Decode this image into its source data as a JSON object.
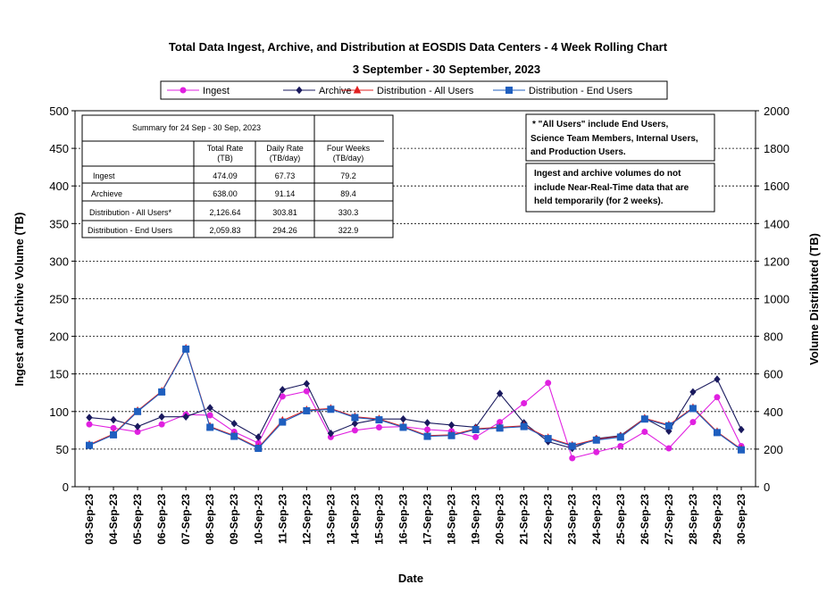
{
  "title": "Total Data Ingest, Archive, and  Distribution at EOSDIS Data Centers - 4 Week Rolling Chart",
  "subtitle": "3 September   - 30 September,  2023",
  "notes": [
    "* \"All Users\" include End Users,",
    "Science Team Members,  Internal Users,",
    "and Production Users.",
    "Ingest and archive volumes do not",
    "include Near-Real-Time data that are",
    "held temporarily (for 2 weeks)."
  ],
  "summary": {
    "caption": "Summary  for  24 Sep -  30 Sep, 2023",
    "headers": [
      [
        "Total Rate",
        "(TB)"
      ],
      [
        "Daily Rate",
        "(TB/day)"
      ],
      [
        "Four Weeks",
        "(TB/day)"
      ]
    ],
    "rows": [
      {
        "label": "Ingest",
        "total": "474.09",
        "daily": "67.73",
        "four": "79.2"
      },
      {
        "label": "Archieve",
        "total": "638.00",
        "daily": "91.14",
        "four": "89.4"
      },
      {
        "label": "Distribution - All Users*",
        "total": "2,126.64",
        "daily": "303.81",
        "four": "330.3"
      },
      {
        "label": "Distribution - End Users",
        "total": "2,059.83",
        "daily": "294.26",
        "four": "322.9"
      }
    ]
  },
  "colors": {
    "ingest": "#e020e0",
    "archive": "#1a1a5e",
    "dist_all": "#e02020",
    "dist_end": "#1f5fbf"
  },
  "chart_data": {
    "type": "line",
    "xlabel": "Date",
    "ylabel": "Ingest and Archive Volume (TB)",
    "y2label": "Volume Distributed (TB)",
    "ylim": [
      0,
      500
    ],
    "y2lim": [
      0,
      2000
    ],
    "yticks": [
      "0",
      "50",
      "100",
      "150",
      "200",
      "250",
      "300",
      "350",
      "400",
      "450",
      "500"
    ],
    "y2ticks": [
      "0",
      "200",
      "400",
      "600",
      "800",
      "1000",
      "1200",
      "1400",
      "1600",
      "1800",
      "2000"
    ],
    "grid": true,
    "legend_position": "top",
    "categories": [
      "03-Sep-23",
      "04-Sep-23",
      "05-Sep-23",
      "06-Sep-23",
      "07-Sep-23",
      "08-Sep-23",
      "09-Sep-23",
      "10-Sep-23",
      "11-Sep-23",
      "12-Sep-23",
      "13-Sep-23",
      "14-Sep-23",
      "15-Sep-23",
      "16-Sep-23",
      "17-Sep-23",
      "18-Sep-23",
      "19-Sep-23",
      "20-Sep-23",
      "21-Sep-23",
      "22-Sep-23",
      "23-Sep-23",
      "24-Sep-23",
      "25-Sep-23",
      "26-Sep-23",
      "27-Sep-23",
      "28-Sep-23",
      "29-Sep-23",
      "30-Sep-23"
    ],
    "series": [
      {
        "name": "Ingest",
        "axis": "left",
        "marker": "circle",
        "color": "#e020e0",
        "values": [
          83,
          78,
          73,
          83,
          96,
          95,
          73,
          58,
          120,
          127,
          66,
          75,
          79,
          80,
          76,
          74,
          66,
          86,
          111,
          138,
          38,
          46,
          54,
          73,
          51,
          86,
          119,
          54
        ]
      },
      {
        "name": "Archive",
        "axis": "left",
        "marker": "diamond",
        "color": "#1a1a5e",
        "values": [
          92,
          89,
          80,
          93,
          93,
          105,
          84,
          66,
          129,
          137,
          71,
          84,
          90,
          90,
          85,
          82,
          79,
          124,
          85,
          60,
          51,
          64,
          68,
          91,
          74,
          126,
          143,
          76
        ]
      },
      {
        "name": "Distribution - All Users",
        "axis": "right",
        "marker": "triangle",
        "color": "#e02020",
        "values": [
          224,
          280,
          404,
          508,
          736,
          320,
          272,
          208,
          352,
          408,
          416,
          372,
          360,
          320,
          272,
          276,
          308,
          316,
          324,
          260,
          220,
          252,
          268,
          364,
          328,
          420,
          292,
          200
        ]
      },
      {
        "name": "Distribution - End Users",
        "axis": "right",
        "marker": "square",
        "color": "#1f5fbf",
        "values": [
          220,
          276,
          400,
          504,
          732,
          316,
          268,
          204,
          344,
          404,
          412,
          368,
          356,
          316,
          268,
          272,
          304,
          312,
          320,
          256,
          216,
          248,
          264,
          360,
          324,
          416,
          288,
          196
        ]
      }
    ]
  }
}
